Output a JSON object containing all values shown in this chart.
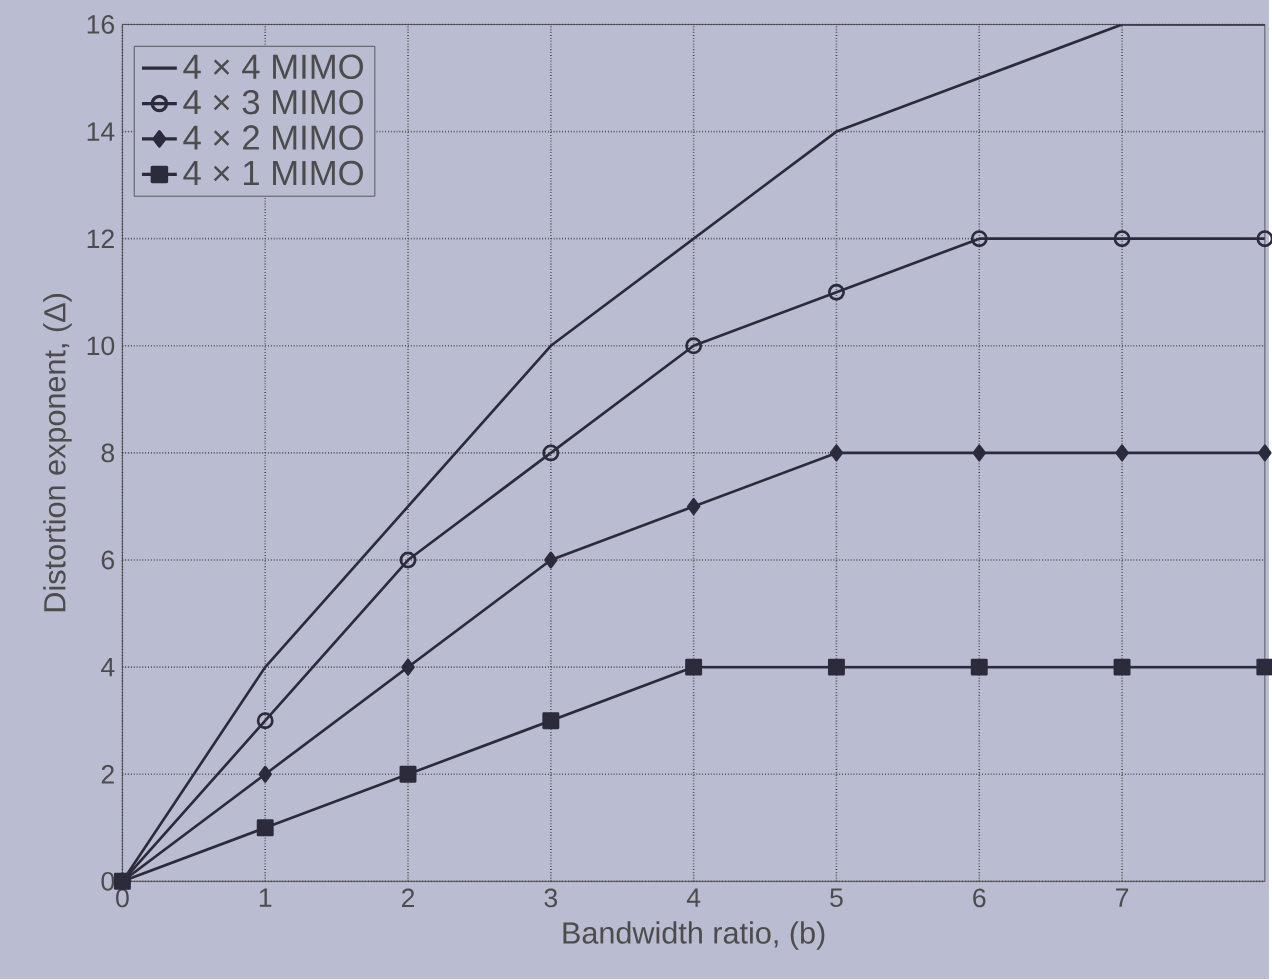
{
  "chart_data": {
    "type": "line",
    "xlabel": "Bandwidth ratio, (b)",
    "ylabel": "Distortion exponent, (Δ)",
    "x": [
      0,
      1,
      2,
      3,
      4,
      5,
      6,
      7,
      8
    ],
    "xlim": [
      0,
      8
    ],
    "xticks": [
      0,
      1,
      2,
      3,
      4,
      5,
      6,
      7
    ],
    "ylim": [
      0,
      16
    ],
    "yticks": [
      0,
      2,
      4,
      6,
      8,
      10,
      12,
      14,
      16
    ],
    "grid": true,
    "legend": "top left",
    "line_style": "solid",
    "series": [
      {
        "name": "4 × 4 MIMO",
        "color": "#2b2b3c",
        "marker": "none",
        "values": [
          0,
          4,
          7,
          10,
          12,
          14,
          15,
          16,
          16
        ]
      },
      {
        "name": "4 × 3 MIMO",
        "color": "#2b2b3c",
        "marker": "circle",
        "values": [
          0,
          3,
          6,
          8,
          10,
          11,
          12,
          12,
          12
        ]
      },
      {
        "name": "4 × 2 MIMO",
        "color": "#2b2b3c",
        "marker": "diamond",
        "values": [
          0,
          2,
          4,
          6,
          7,
          8,
          8,
          8,
          8
        ]
      },
      {
        "name": "4 × 1 MIMO",
        "color": "#2b2b3c",
        "marker": "square",
        "values": [
          0,
          1,
          2,
          3,
          4,
          4,
          4,
          4,
          4
        ]
      }
    ]
  }
}
